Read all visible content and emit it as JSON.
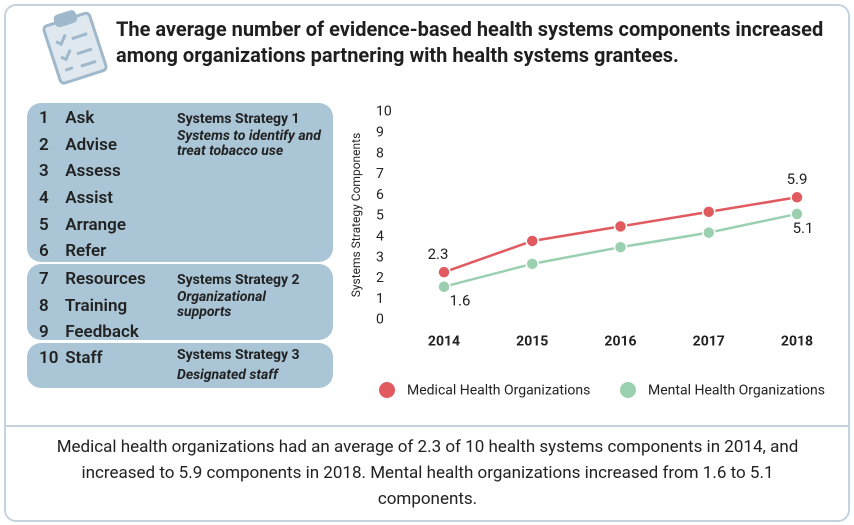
{
  "title": "The average number of evidence-based health systems components increased among organizations partnering with health systems grantees.",
  "strategies": [
    {
      "heading": "Systems Strategy 1",
      "description": "Systems to identify and treat tobacco use",
      "items": [
        {
          "number": 1,
          "label": "Ask"
        },
        {
          "number": 2,
          "label": "Advise"
        },
        {
          "number": 3,
          "label": "Assess"
        },
        {
          "number": 4,
          "label": "Assist"
        },
        {
          "number": 5,
          "label": "Arrange"
        },
        {
          "number": 6,
          "label": "Refer"
        }
      ]
    },
    {
      "heading": "Systems Strategy 2",
      "description": "Organizational supports",
      "items": [
        {
          "number": 7,
          "label": "Resources"
        },
        {
          "number": 8,
          "label": "Training"
        },
        {
          "number": 9,
          "label": "Feedback"
        }
      ]
    },
    {
      "heading": "Systems Strategy 3",
      "description": "Designated staff",
      "items": [
        {
          "number": 10,
          "label": "Staff"
        }
      ]
    }
  ],
  "chart_data": {
    "type": "line",
    "y_label": "Systems Strategy Components",
    "categories": [
      "2014",
      "2015",
      "2016",
      "2017",
      "2018"
    ],
    "series": [
      {
        "name": "Medical Health Organizations",
        "color": "#e05a5f",
        "values": [
          2.3,
          3.8,
          4.5,
          5.2,
          5.9
        ],
        "value_labels": [
          "2.3",
          null,
          null,
          null,
          "5.9"
        ]
      },
      {
        "name": "Mental Health Organizations",
        "color": "#9acfb0",
        "values": [
          1.6,
          2.7,
          3.5,
          4.2,
          5.1
        ],
        "value_labels": [
          "1.6",
          null,
          null,
          null,
          "5.1"
        ]
      }
    ],
    "ylim": [
      0,
      10
    ],
    "yticks": [
      0,
      1,
      2,
      3,
      4,
      5,
      6,
      7,
      8,
      9,
      10
    ],
    "grid": false,
    "legend": "bottom"
  },
  "summary": "Medical health organizations had an average of 2.3 of 10 health systems components in 2014, and increased to 5.9 components in 2018. Mental health organizations increased from 1.6 to 5.1 components."
}
